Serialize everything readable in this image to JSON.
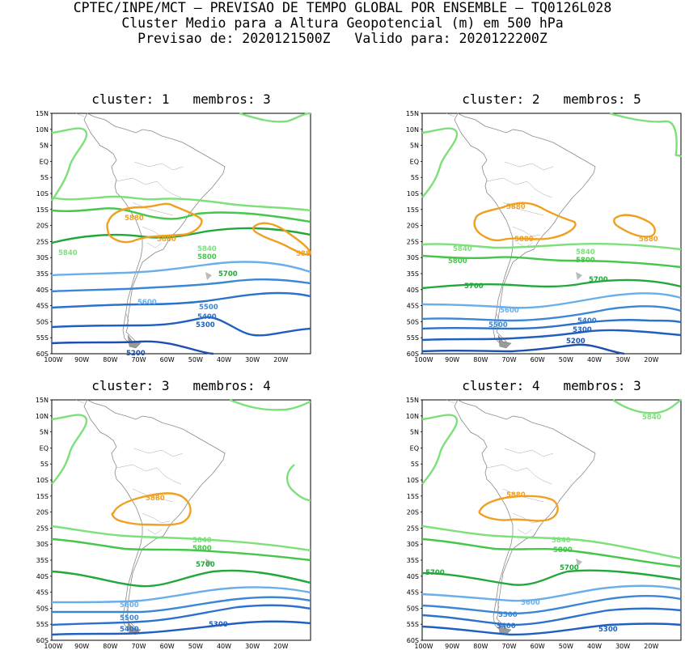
{
  "header": {
    "line1": "CPTEC/INPE/MCT – PREVISAO DE TEMPO GLOBAL POR ENSEMBLE – TQ0126L028",
    "line2": "Cluster Medio para a Altura Geopotencial (m) em 500 hPa",
    "line3": "Previsao de: 2020121500Z   Valido para: 2020122200Z"
  },
  "axes": {
    "lat_labels": [
      "15N",
      "10N",
      "5N",
      "EQ",
      "5S",
      "10S",
      "15S",
      "20S",
      "25S",
      "30S",
      "35S",
      "40S",
      "45S",
      "50S",
      "55S",
      "60S"
    ],
    "lon_labels": [
      "100W",
      "90W",
      "80W",
      "70W",
      "60W",
      "50W",
      "40W",
      "30W",
      "20W"
    ]
  },
  "colors": {
    "c5200": "#1c4fb0",
    "c5300": "#1f5fbf",
    "c5400": "#2c72cc",
    "c5500": "#3c86d6",
    "c5600": "#6aaeea",
    "c5700": "#22a83a",
    "c5800": "#44c74a",
    "c5840": "#7de07a",
    "c5880": "#f0a020"
  },
  "panels": [
    {
      "title": "cluster: 1   membros: 3",
      "labels": {
        "l5880a": "5880",
        "l5880b": "5880",
        "l5880c": "588",
        "l5840a": "5840",
        "l5840b": "5840",
        "l5800": "5800",
        "l5700": "5700",
        "l5600": "5600",
        "l5500": "5500",
        "l5400": "5400",
        "l5300": "5300",
        "l5200": "5200"
      }
    },
    {
      "title": "cluster: 2   membros: 5",
      "labels": {
        "l5880a": "5880",
        "l5880b": "5880",
        "l5880c": "5880",
        "l5840a": "5840",
        "l5840b": "5840",
        "l5800a": "5800",
        "l5800b": "5800",
        "l5700a": "5700",
        "l5700b": "5700",
        "l5600": "5600",
        "l5500": "5500",
        "l5400": "5400",
        "l5300": "5300",
        "l5200": "5200"
      }
    },
    {
      "title": "cluster: 3   membros: 4",
      "labels": {
        "l5880": "5880",
        "l5840": "5840",
        "l5800": "5800",
        "l5700": "5700",
        "l5600": "5600",
        "l5500": "5500",
        "l5400": "5400",
        "l5300": "5300"
      }
    },
    {
      "title": "cluster: 4   membros: 3",
      "labels": {
        "l5880": "5880",
        "l5840a": "5840",
        "l5840b": "5840",
        "l5800": "5800",
        "l5700a": "5700",
        "l5700b": "5700",
        "l5600": "5600",
        "l5500": "5500",
        "l5400": "5400",
        "l5300": "5300"
      }
    }
  ]
}
